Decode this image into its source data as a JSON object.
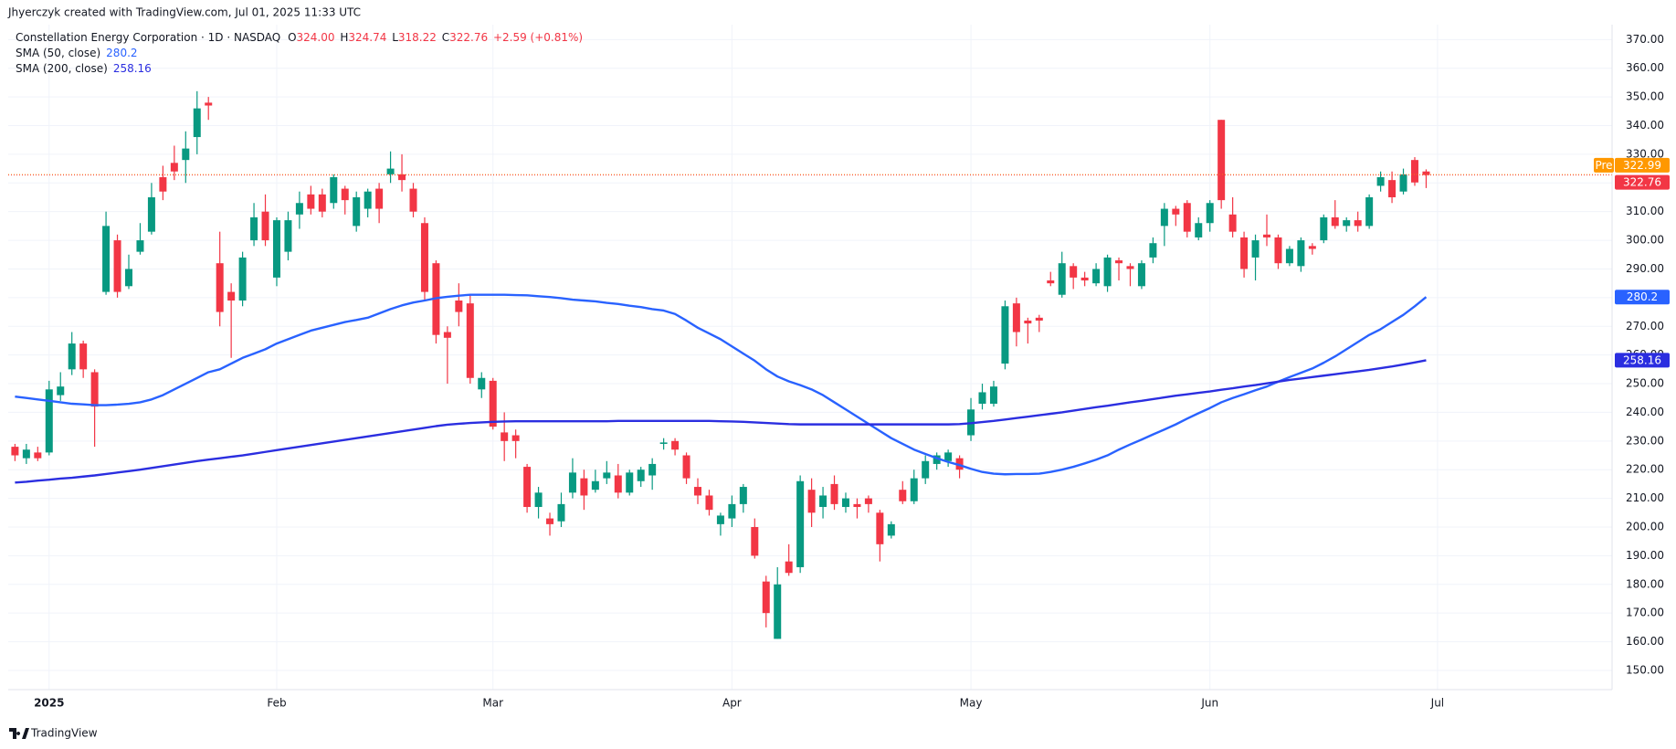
{
  "chart_data": {
    "type": "candlestick",
    "attribution": "Jhyerczyk created with TradingView.com, Jul 01, 2025 11:33 UTC",
    "title": "Constellation Energy Corporation · 1D · NASDAQ",
    "ohlc_letters": [
      "O",
      "H",
      "L",
      "C"
    ],
    "last_bar": {
      "open": "324.00",
      "high": "324.74",
      "low": "318.22",
      "close": "322.76"
    },
    "change": "+2.59 (+0.81%)",
    "up_color": "#089981",
    "down_color": "#f23645",
    "open": [
      228,
      224,
      226,
      226,
      246,
      255,
      264,
      254,
      282,
      300,
      284,
      296,
      303,
      322,
      327,
      328,
      336,
      348,
      292,
      282,
      279,
      300,
      310,
      287,
      296,
      309,
      316,
      316,
      313,
      318,
      305,
      311,
      318,
      323,
      323,
      318,
      306,
      292,
      268,
      279,
      278,
      248,
      251,
      233,
      232,
      221,
      207,
      203,
      202,
      212,
      217,
      213,
      217,
      218,
      212,
      216,
      218,
      229,
      230,
      225,
      214,
      211,
      201,
      203,
      208,
      200,
      181,
      161,
      188,
      186,
      213,
      207,
      215,
      207,
      208,
      210,
      205,
      197,
      213,
      209,
      217,
      222,
      223,
      224,
      232,
      243,
      243,
      257,
      278,
      272,
      273,
      286,
      281,
      291,
      287,
      285,
      284,
      293,
      291,
      284,
      294,
      305,
      311,
      313,
      301,
      306,
      342,
      309,
      301,
      294,
      302,
      301,
      292,
      291,
      298,
      300,
      308,
      305,
      307,
      305,
      319,
      321,
      317,
      328,
      324
    ],
    "high": [
      229,
      229,
      228,
      251,
      254,
      268,
      265,
      255,
      310,
      302,
      295,
      306,
      320,
      326,
      333,
      338,
      352,
      350,
      303,
      285,
      296,
      313,
      316,
      308,
      310,
      317,
      319,
      318,
      323,
      319,
      317,
      318,
      320,
      331,
      330,
      320,
      308,
      293,
      270,
      285,
      281,
      254,
      252,
      240,
      234,
      222,
      214,
      205,
      212,
      224,
      220,
      220,
      223,
      222,
      220,
      221,
      224,
      231,
      231,
      226,
      217,
      213,
      205,
      211,
      215,
      203,
      183,
      186,
      194,
      218,
      217,
      214,
      218,
      212,
      210,
      211,
      206,
      202,
      216,
      220,
      225,
      226,
      227,
      225,
      245,
      250,
      251,
      279,
      280,
      273,
      274,
      289,
      296,
      292,
      289,
      292,
      295,
      294,
      292,
      293,
      301,
      313,
      312,
      314,
      308,
      314,
      342,
      315,
      303,
      302,
      309,
      302,
      298,
      301,
      299,
      309,
      314,
      308,
      310,
      316,
      324,
      324,
      325,
      329,
      324.74
    ],
    "low": [
      223,
      222,
      223,
      225,
      244,
      253,
      252,
      228,
      281,
      280,
      283,
      295,
      302,
      314,
      321,
      320,
      330,
      342,
      270,
      259,
      277,
      298,
      298,
      284,
      293,
      304,
      309,
      308,
      311,
      309,
      303,
      308,
      306,
      320,
      317,
      308,
      279,
      264,
      250,
      270,
      250,
      245,
      234,
      223,
      224,
      205,
      203,
      197,
      200,
      210,
      206,
      212,
      215,
      210,
      211,
      214,
      213,
      227,
      225,
      215,
      208,
      204,
      197,
      200,
      205,
      189,
      165,
      161,
      183,
      184,
      200,
      203,
      206,
      205,
      203,
      205,
      188,
      196,
      208,
      208,
      215,
      220,
      221,
      217,
      230,
      241,
      242,
      255,
      263,
      264,
      268,
      284,
      280,
      283,
      284,
      284,
      282,
      286,
      284,
      283,
      292,
      298,
      305,
      301,
      300,
      303,
      311,
      301,
      287,
      286,
      298,
      290,
      291,
      289,
      295,
      299,
      304,
      303,
      303,
      304,
      317,
      313,
      316,
      319,
      318.22
    ],
    "close": [
      225,
      227,
      224,
      248,
      249,
      264,
      255,
      242,
      305,
      282,
      290,
      300,
      315,
      317,
      324,
      332,
      346,
      347,
      275,
      279,
      294,
      308,
      300,
      307,
      307,
      313,
      311,
      310,
      322,
      314,
      315,
      317,
      311,
      325,
      321,
      310,
      282,
      267,
      266,
      275,
      252,
      252,
      235,
      230,
      230,
      207,
      212,
      201,
      208,
      219,
      211,
      216,
      219,
      212,
      219,
      220,
      222,
      229.5,
      227,
      217,
      211,
      206,
      204,
      208,
      214,
      190,
      170,
      180,
      184,
      216,
      205,
      211,
      208,
      210,
      207,
      208,
      194,
      201,
      209,
      217,
      223,
      225,
      226,
      220,
      241,
      247,
      249,
      277,
      268,
      271,
      272,
      285,
      292,
      287,
      286,
      290,
      294,
      292,
      290,
      292,
      299,
      311,
      309,
      303,
      306,
      313,
      314,
      303,
      290,
      300,
      301,
      292,
      297,
      300,
      297,
      308,
      305,
      307,
      305,
      315,
      322,
      315,
      323,
      320.17,
      322.76
    ],
    "series": [
      {
        "name": "SMA (50, close)",
        "color": "#2962ff",
        "values": [
          245.5,
          245,
          244.5,
          244,
          243.5,
          243,
          242.8,
          242.5,
          242.5,
          242.7,
          243,
          243.5,
          244.5,
          246,
          248,
          250,
          252,
          254,
          255,
          257,
          259,
          260.5,
          262,
          264,
          265.5,
          267,
          268.5,
          269.5,
          270.5,
          271.5,
          272.2,
          273,
          274.5,
          276,
          277.3,
          278.3,
          279,
          279.8,
          280.3,
          280.7,
          281,
          281,
          281,
          281,
          280.9,
          280.8,
          280.5,
          280.2,
          279.8,
          279.3,
          279,
          278.7,
          278.2,
          277.8,
          277.2,
          276.7,
          276,
          275.5,
          274.3,
          272,
          269.5,
          267.5,
          265.5,
          263,
          260.5,
          258,
          255,
          252.5,
          250.8,
          249.5,
          248,
          246,
          243.5,
          241,
          238.5,
          236,
          233.5,
          231,
          229,
          227,
          225.5,
          224,
          222.7,
          221.6,
          220.3,
          219.2,
          218.6,
          218.4,
          218.5,
          218.5,
          218.6,
          219.2,
          220,
          221,
          222.2,
          223.5,
          225,
          227,
          228.8,
          230.5,
          232.3,
          234,
          235.8,
          237.8,
          239.7,
          241.5,
          243.5,
          245,
          246.3,
          247.7,
          249,
          250.7,
          252.3,
          253.8,
          255.3,
          257.3,
          259.5,
          262,
          264.5,
          267,
          269,
          271.5,
          274,
          277,
          280.2
        ]
      },
      {
        "name": "SMA (200, close)",
        "color": "#2b2ee0",
        "values": [
          215.5,
          215.8,
          216.2,
          216.5,
          216.9,
          217.2,
          217.6,
          218,
          218.5,
          219,
          219.5,
          220,
          220.6,
          221.2,
          221.8,
          222.4,
          223,
          223.5,
          224,
          224.5,
          225,
          225.6,
          226.2,
          226.8,
          227.4,
          228,
          228.6,
          229.2,
          229.8,
          230.4,
          231,
          231.6,
          232.2,
          232.8,
          233.4,
          234,
          234.6,
          235.2,
          235.7,
          236,
          236.3,
          236.5,
          236.7,
          236.8,
          236.9,
          236.9,
          236.9,
          236.9,
          236.9,
          236.9,
          236.9,
          236.9,
          236.9,
          237,
          237,
          237,
          237,
          237,
          237,
          237,
          237,
          237,
          236.9,
          236.8,
          236.7,
          236.5,
          236.3,
          236.1,
          235.9,
          235.8,
          235.8,
          235.8,
          235.8,
          235.8,
          235.8,
          235.8,
          235.8,
          235.8,
          235.8,
          235.8,
          235.8,
          235.8,
          235.8,
          235.9,
          236.2,
          236.6,
          237,
          237.5,
          238,
          238.5,
          239,
          239.5,
          240,
          240.6,
          241.2,
          241.8,
          242.3,
          242.9,
          243.5,
          244,
          244.6,
          245.2,
          245.8,
          246.3,
          246.8,
          247.3,
          247.9,
          248.4,
          249,
          249.5,
          250.1,
          250.7,
          251.3,
          251.8,
          252.3,
          252.8,
          253.3,
          253.8,
          254.3,
          254.8,
          255.4,
          256,
          256.7,
          257.4,
          258.16
        ]
      }
    ],
    "premarket": {
      "label": "Pre",
      "value": 322.99,
      "color": "#ff9800"
    },
    "ylim": [
      143.3,
      375.2
    ],
    "yticks": [
      {
        "value": 150,
        "label": "150.00"
      },
      {
        "value": 160,
        "label": "160.00"
      },
      {
        "value": 170,
        "label": "170.00"
      },
      {
        "value": 180,
        "label": "180.00"
      },
      {
        "value": 190,
        "label": "190.00"
      },
      {
        "value": 200,
        "label": "200.00"
      },
      {
        "value": 210,
        "label": "210.00"
      },
      {
        "value": 220,
        "label": "220.00"
      },
      {
        "value": 230,
        "label": "230.00"
      },
      {
        "value": 240,
        "label": "240.00"
      },
      {
        "value": 250,
        "label": "250.00"
      },
      {
        "value": 260,
        "label": "260.00"
      },
      {
        "value": 270,
        "label": "270.00"
      },
      {
        "value": 280,
        "label": "280.00"
      },
      {
        "value": 290,
        "label": "290.00"
      },
      {
        "value": 300,
        "label": "300.00"
      },
      {
        "value": 310,
        "label": "310.00"
      },
      {
        "value": 320,
        "label": "320.00"
      },
      {
        "value": 330,
        "label": "330.00"
      },
      {
        "value": 340,
        "label": "340.00"
      },
      {
        "value": 350,
        "label": "350.00"
      },
      {
        "value": 360,
        "label": "360.00"
      },
      {
        "value": 370,
        "label": "370.00"
      }
    ],
    "xticks": [
      {
        "value": 3,
        "label": "2025"
      },
      {
        "value": 23,
        "label": "Feb"
      },
      {
        "value": 42,
        "label": "Mar"
      },
      {
        "value": 63,
        "label": "Apr"
      },
      {
        "value": 84,
        "label": "May"
      },
      {
        "value": 105,
        "label": "Jun"
      },
      {
        "value": 125,
        "label": "Jul"
      }
    ],
    "grid": true,
    "logo": "TradingView"
  }
}
